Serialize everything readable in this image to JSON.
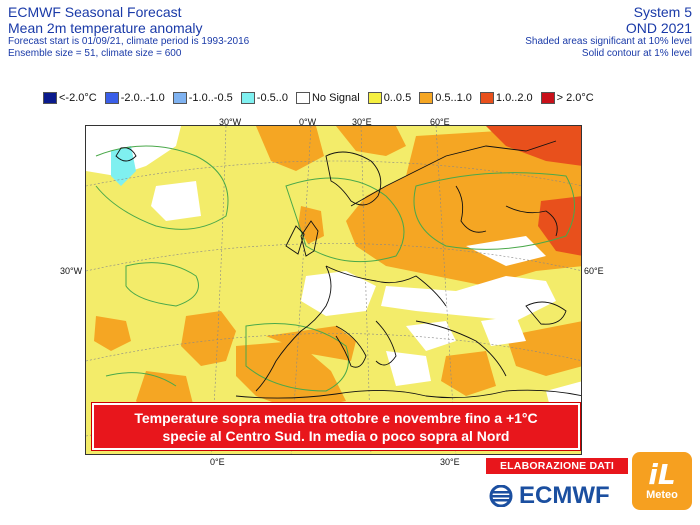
{
  "header": {
    "title": "ECMWF Seasonal Forecast",
    "subtitle": "Mean 2m temperature anomaly",
    "forecast_info": "Forecast start is 01/09/21, climate period is 1993-2016",
    "ensemble_info": "Ensemble size = 51, climate size = 600",
    "system": "System 5",
    "period": "OND 2021",
    "significance_shaded": "Shaded areas significant at 10% level",
    "significance_contour": "Solid contour at 1% level"
  },
  "legend": [
    {
      "label": "<-2.0°C",
      "color": "#0a1a8c"
    },
    {
      "label": "-2.0..-1.0",
      "color": "#3a5ee8"
    },
    {
      "label": "-1.0..-0.5",
      "color": "#7fb2f0"
    },
    {
      "label": "-0.5..0",
      "color": "#7ff0f0"
    },
    {
      "label": "No Signal",
      "color": "#ffffff"
    },
    {
      "label": "0..0.5",
      "color": "#f5ef40"
    },
    {
      "label": "0.5..1.0",
      "color": "#f5a623"
    },
    {
      "label": "1.0..2.0",
      "color": "#e8501c"
    },
    {
      "label": "> 2.0°C",
      "color": "#c8101a"
    }
  ],
  "grid_labels": {
    "lon_30w_top": "30°W",
    "lon_0_top": "0°W",
    "lon_30e_top": "30°E",
    "lon_60e_top": "60°E",
    "lat_30w_left": "30°W",
    "lon_60e_right": "60°E",
    "lon_0_bottom": "0°E",
    "lon_30e_bottom": "30°E"
  },
  "banner": {
    "line1": "Temperature sopra media tra ottobre e novembre fino a +1°C",
    "line2": "specie al Centro Sud. In media o poco sopra al Nord"
  },
  "branding": {
    "elaborazione": "ELABORAZIONE DATI",
    "ecmwf": "ECMWF",
    "il": "iL",
    "meteo": "Meteo"
  },
  "colors": {
    "header_text": "#1a3aa8",
    "banner_bg": "#e8161c",
    "brand_orange": "#f6a020",
    "ecmwf_blue": "#1b4fa0"
  }
}
